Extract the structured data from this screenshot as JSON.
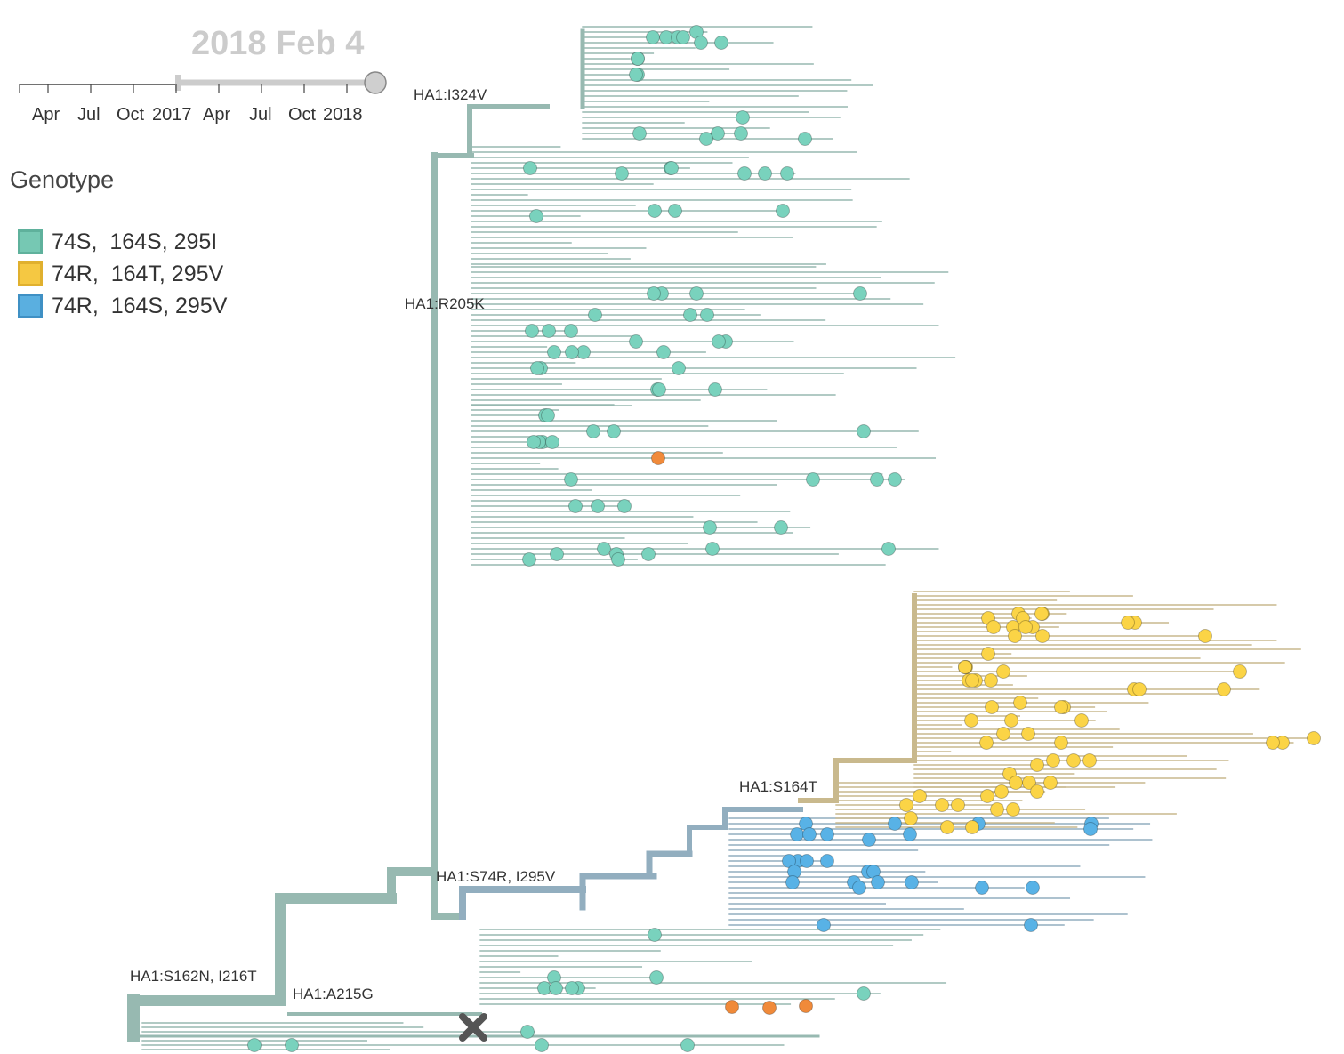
{
  "time_slider": {
    "current_date": "2018 Feb 4",
    "tick_labels": [
      "Apr",
      "Jul",
      "Oct",
      "2017",
      "Apr",
      "Jul",
      "Oct",
      "2018"
    ]
  },
  "legend": {
    "title": "Genotype",
    "items": [
      {
        "label": "74S,  164S, 295I",
        "fill": "#76c8b3",
        "stroke": "#5fb19c"
      },
      {
        "label": "74R,  164T, 295V",
        "fill": "#f5c842",
        "stroke": "#e0b02e"
      },
      {
        "label": "74R,  164S, 295V",
        "fill": "#5aafe0",
        "stroke": "#3f90c4"
      }
    ]
  },
  "mutation_labels": {
    "i324v": "HA1:I324V",
    "r205k": "HA1:R205K",
    "s74r_i295v": "HA1:S74R, I295V",
    "s164t": "HA1:S164T",
    "s162n_i216t": "HA1:S162N, I216T",
    "a215g": "HA1:A215G"
  },
  "colors": {
    "teal_branch": "#97b9b1",
    "yellow_branch": "#c9b98d",
    "blue_branch": "#92aebf",
    "teal_tip": "#79d2bd",
    "yellow_tip": "#fbd446",
    "blue_tip": "#58b2e6",
    "orange_tip": "#f08a3a",
    "root_marker": "#555555"
  }
}
